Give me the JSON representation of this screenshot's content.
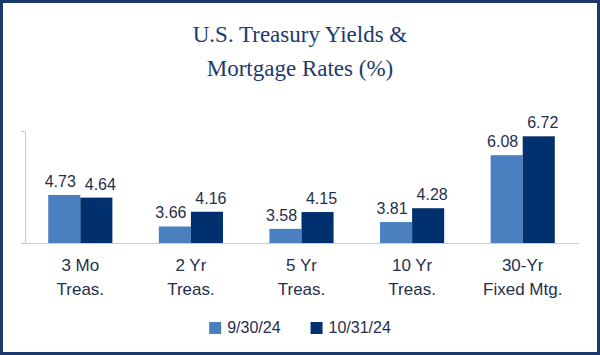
{
  "chart_data": {
    "type": "bar",
    "title": "U.S. Treasury Yields &\nMortgage Rates (%)",
    "categories": [
      "3 Mo\nTreas.",
      "2 Yr\nTreas.",
      "5 Yr\nTreas.",
      "10 Yr\nTreas.",
      "30-Yr\nFixed Mtg."
    ],
    "series": [
      {
        "name": "9/30/24",
        "color": "#4a7fc0",
        "values": [
          4.73,
          3.66,
          3.58,
          3.81,
          6.08
        ]
      },
      {
        "name": "10/31/24",
        "color": "#00306e",
        "values": [
          4.64,
          4.16,
          4.15,
          4.28,
          6.72
        ]
      }
    ],
    "ylim": [
      3.1,
      6.9
    ],
    "yticks": [],
    "data_labels": true,
    "tick_labels": "x",
    "grid": false,
    "legend": "bottom"
  }
}
